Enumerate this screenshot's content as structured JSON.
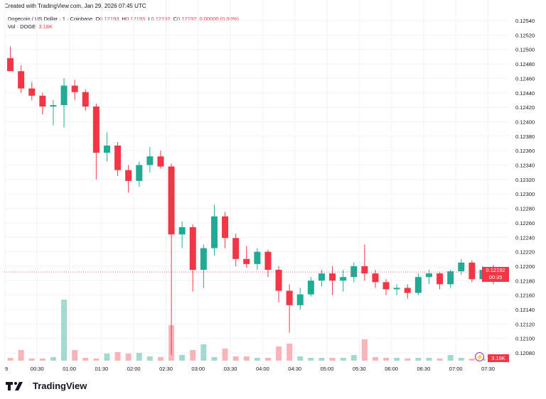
{
  "header": {
    "created": "Created with TradingView.com, Jan 29, 2026 07:45 UTC"
  },
  "legend": {
    "symbol": "Dogecoin / US Dollar · 1 · Coinbase",
    "o_label": "O",
    "o": "0.12193",
    "h_label": "H",
    "h": "0.12193",
    "l_label": "L",
    "l": "0.12192",
    "c_label": "C",
    "c": "0.12192",
    "change": "0.00000 (0.00%)",
    "vol_label": "Vol · DOGE",
    "vol": "3.18K"
  },
  "price_label": {
    "price": "0.12192",
    "countdown": "00:35"
  },
  "volume_label": "3.18K",
  "logo": "TradingView",
  "colors": {
    "up": "#22ab94",
    "down": "#f23645",
    "grid": "#f0f3fa",
    "volume_up": "#a3d9cf",
    "volume_down": "#f8b4b9",
    "alert_icon": "#9c27b0"
  },
  "chart_data": {
    "type": "candlestick",
    "interval_note": "approximated as 10-minute candles",
    "ylim": [
      0.1207,
      0.1255
    ],
    "y_ticks": [
      "0.12540",
      "0.12520",
      "0.12500",
      "0.12480",
      "0.12460",
      "0.12440",
      "0.12420",
      "0.12400",
      "0.12380",
      "0.12360",
      "0.12340",
      "0.12320",
      "0.12300",
      "0.12280",
      "0.12260",
      "0.12240",
      "0.12220",
      "0.12200",
      "0.12180",
      "0.12160",
      "0.12140",
      "0.12120",
      "0.12100",
      "0.12080"
    ],
    "x_ticks": [
      "9",
      "00:30",
      "01:00",
      "01:30",
      "02:00",
      "02:30",
      "03:00",
      "03:30",
      "04:00",
      "04:30",
      "05:00",
      "05:30",
      "06:00",
      "06:30",
      "07:00",
      "07:30"
    ],
    "last_price": 0.12192,
    "candles": [
      [
        "00:00",
        0.12488,
        0.12504,
        0.1247,
        0.1247,
        4
      ],
      [
        "00:10",
        0.1247,
        0.12478,
        0.1244,
        0.12446,
        15
      ],
      [
        "00:20",
        0.12446,
        0.12455,
        0.1243,
        0.12436,
        3
      ],
      [
        "00:30",
        0.12436,
        0.1244,
        0.1241,
        0.12421,
        3
      ],
      [
        "00:40",
        0.12421,
        0.1243,
        0.12395,
        0.12423,
        5
      ],
      [
        "00:50",
        0.12423,
        0.1246,
        0.12392,
        0.1245,
        86
      ],
      [
        "01:00",
        0.1245,
        0.12458,
        0.1243,
        0.12441,
        15
      ],
      [
        "01:10",
        0.12441,
        0.12445,
        0.12415,
        0.12421,
        4
      ],
      [
        "01:20",
        0.12421,
        0.12425,
        0.1232,
        0.12357,
        3
      ],
      [
        "01:30",
        0.12357,
        0.12385,
        0.12345,
        0.12367,
        10
      ],
      [
        "01:40",
        0.12367,
        0.12372,
        0.12325,
        0.12333,
        12
      ],
      [
        "01:50",
        0.12333,
        0.1234,
        0.12302,
        0.12318,
        10
      ],
      [
        "02:00",
        0.12318,
        0.12345,
        0.1231,
        0.1234,
        11
      ],
      [
        "02:10",
        0.1234,
        0.12365,
        0.1233,
        0.12352,
        6
      ],
      [
        "02:20",
        0.12352,
        0.1236,
        0.12335,
        0.12338,
        5
      ],
      [
        "02:30",
        0.12338,
        0.12342,
        0.12077,
        0.12244,
        50
      ],
      [
        "02:40",
        0.12244,
        0.12262,
        0.12225,
        0.12254,
        8
      ],
      [
        "02:50",
        0.12254,
        0.12258,
        0.12165,
        0.12195,
        15
      ],
      [
        "03:00",
        0.12195,
        0.1223,
        0.1217,
        0.12225,
        23
      ],
      [
        "03:10",
        0.12225,
        0.12285,
        0.12215,
        0.12269,
        5
      ],
      [
        "03:20",
        0.12269,
        0.12275,
        0.12225,
        0.12239,
        17
      ],
      [
        "03:30",
        0.12239,
        0.12245,
        0.122,
        0.1221,
        6
      ],
      [
        "03:40",
        0.1221,
        0.12228,
        0.12198,
        0.12203,
        6
      ],
      [
        "03:50",
        0.12203,
        0.12225,
        0.12195,
        0.1222,
        4
      ],
      [
        "04:00",
        0.1222,
        0.12223,
        0.12185,
        0.12195,
        4
      ],
      [
        "04:10",
        0.12195,
        0.122,
        0.1215,
        0.12166,
        20
      ],
      [
        "04:20",
        0.12166,
        0.12175,
        0.12108,
        0.12146,
        24
      ],
      [
        "04:30",
        0.12146,
        0.1217,
        0.1214,
        0.12161,
        6
      ],
      [
        "04:40",
        0.12161,
        0.12185,
        0.12158,
        0.1218,
        4
      ],
      [
        "04:50",
        0.1218,
        0.12195,
        0.12172,
        0.1219,
        4
      ],
      [
        "05:00",
        0.1219,
        0.122,
        0.1216,
        0.1218,
        4
      ],
      [
        "05:10",
        0.1218,
        0.12195,
        0.12165,
        0.12185,
        4
      ],
      [
        "05:20",
        0.12185,
        0.12205,
        0.12178,
        0.122,
        8
      ],
      [
        "05:30",
        0.122,
        0.1223,
        0.1218,
        0.1219,
        30
      ],
      [
        "05:40",
        0.1219,
        0.12195,
        0.1217,
        0.12178,
        5
      ],
      [
        "05:50",
        0.12178,
        0.12182,
        0.1216,
        0.12168,
        4
      ],
      [
        "06:00",
        0.12168,
        0.12175,
        0.1216,
        0.1217,
        4
      ],
      [
        "06:10",
        0.1217,
        0.12175,
        0.12155,
        0.12163,
        3
      ],
      [
        "06:20",
        0.12163,
        0.1219,
        0.1216,
        0.12185,
        4
      ],
      [
        "06:30",
        0.12185,
        0.12195,
        0.12175,
        0.1219,
        4
      ],
      [
        "06:40",
        0.1219,
        0.12192,
        0.12168,
        0.12175,
        3
      ],
      [
        "06:50",
        0.12175,
        0.12195,
        0.1217,
        0.12193,
        8
      ],
      [
        "07:00",
        0.12193,
        0.1221,
        0.12188,
        0.12205,
        4
      ],
      [
        "07:10",
        0.12205,
        0.12208,
        0.12178,
        0.12182,
        3
      ],
      [
        "07:20",
        0.12182,
        0.122,
        0.12178,
        0.12195,
        3
      ],
      [
        "07:30",
        0.12195,
        0.12202,
        0.12175,
        0.12185,
        6
      ],
      [
        "07:40",
        0.12185,
        0.12198,
        0.12183,
        0.12192,
        3
      ]
    ],
    "candle_fields": [
      "time",
      "open",
      "high",
      "low",
      "close",
      "volume_k"
    ]
  }
}
